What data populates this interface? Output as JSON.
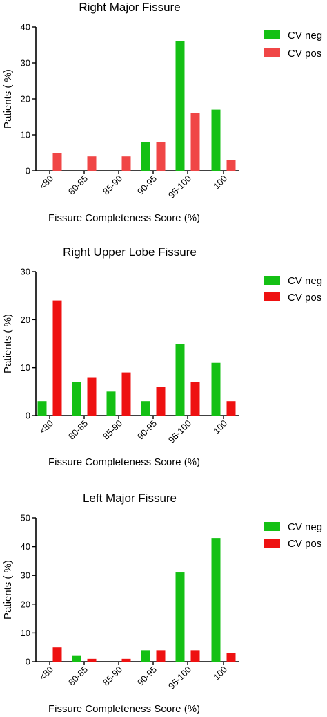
{
  "colors": {
    "cv_neg": "#14c014",
    "cv_pos_1": "#f04646",
    "cv_pos": "#ee1111"
  },
  "chart_data": [
    {
      "type": "bar",
      "title": "Right Major Fissure",
      "xlabel": "Fissure Completeness Score (%)",
      "ylabel": "Patients ( %)",
      "categories": [
        "<80",
        "80-85",
        "85-90",
        "90-95",
        "95-100",
        "100"
      ],
      "ylim": [
        0,
        40
      ],
      "yticks": [
        "0",
        "10",
        "20",
        "30",
        "40"
      ],
      "legend": "right",
      "series": [
        {
          "name": "CV neg",
          "color": "#14c014",
          "values": [
            0,
            0,
            0,
            8,
            36,
            17
          ]
        },
        {
          "name": "CV pos",
          "color": "#f04646",
          "values": [
            5,
            4,
            4,
            8,
            16,
            3
          ]
        }
      ]
    },
    {
      "type": "bar",
      "title": "Right Upper Lobe Fissure",
      "xlabel": "Fissure Completeness Score (%)",
      "ylabel": "Patients ( %)",
      "categories": [
        "<80",
        "80-85",
        "85-90",
        "90-95",
        "95-100",
        "100"
      ],
      "ylim": [
        0,
        30
      ],
      "yticks": [
        "0",
        "10",
        "20",
        "30"
      ],
      "legend": "right",
      "series": [
        {
          "name": "CV neg",
          "color": "#14c014",
          "values": [
            3,
            7,
            5,
            3,
            15,
            11
          ]
        },
        {
          "name": "CV pos",
          "color": "#ee1111",
          "values": [
            24,
            8,
            9,
            6,
            7,
            3
          ]
        }
      ]
    },
    {
      "type": "bar",
      "title": "Left Major Fissure",
      "xlabel": "Fissure Completeness Score (%)",
      "ylabel": "Patients ( %)",
      "categories": [
        "<80",
        "80-85",
        "85-90",
        "90-95",
        "95-100",
        "100"
      ],
      "ylim": [
        0,
        50
      ],
      "yticks": [
        "0",
        "10",
        "20",
        "30",
        "40",
        "50"
      ],
      "legend": "right",
      "series": [
        {
          "name": "CV neg",
          "color": "#14c014",
          "values": [
            0,
            2,
            0,
            4,
            31,
            43
          ]
        },
        {
          "name": "CV pos",
          "color": "#ee1111",
          "values": [
            5,
            1,
            1,
            4,
            4,
            3
          ]
        }
      ]
    }
  ]
}
